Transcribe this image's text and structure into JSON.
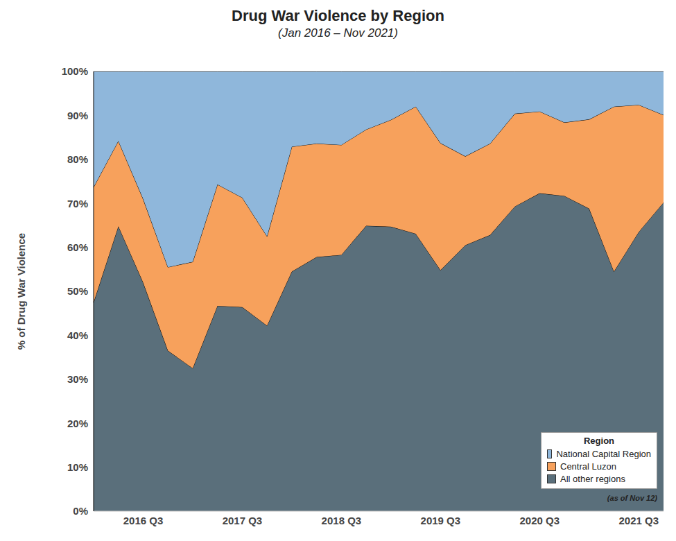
{
  "chart_data": {
    "type": "area",
    "title": "Drug War Violence by Region",
    "subtitle": "(Jan 2016 – Nov 2021)",
    "y_label": "% of Drug War Violence",
    "annotation": "(as of Nov 12)",
    "legend_title": "Region",
    "categories": [
      null,
      null,
      "2016 Q3",
      null,
      null,
      null,
      "2017 Q3",
      null,
      null,
      null,
      "2018 Q3",
      null,
      null,
      null,
      "2019 Q3",
      null,
      null,
      null,
      "2020 Q3",
      null,
      null,
      null,
      "2021 Q3",
      null
    ],
    "series": [
      {
        "name": "All other regions",
        "color": "#5a6f7b",
        "values": [
          47.5,
          64.8,
          52,
          36.5,
          32.5,
          46.7,
          46.4,
          42.2,
          54.5,
          57.8,
          58.3,
          64.9,
          64.7,
          63.1,
          54.8,
          60.5,
          62.8,
          69.3,
          72.3,
          71.7,
          68.8,
          54.5,
          63.5,
          70.2
        ]
      },
      {
        "name": "Central Luzon",
        "color": "#f7a15c",
        "values": [
          26.2,
          19.4,
          19,
          19,
          24.2,
          27.6,
          24.9,
          20.3,
          28.4,
          25.8,
          25,
          21.9,
          24.3,
          28.9,
          28.9,
          20.2,
          20.8,
          21.1,
          18.6,
          16.7,
          20.3,
          37.5,
          28.9,
          19.9
        ]
      },
      {
        "name": "National Capital Region",
        "color": "#8fb7db",
        "values": [
          26.3,
          15.8,
          29,
          44.5,
          43.3,
          25.7,
          28.7,
          37.5,
          17.1,
          16.4,
          16.7,
          13.2,
          11,
          8,
          16.3,
          19.3,
          16.4,
          9.6,
          9.1,
          11.6,
          10.9,
          8,
          7.6,
          9.9
        ]
      }
    ],
    "ylim": [
      0,
      100
    ],
    "yticks": [
      {
        "value": 0,
        "label": "0%"
      },
      {
        "value": 10,
        "label": "10%"
      },
      {
        "value": 20,
        "label": "20%"
      },
      {
        "value": 30,
        "label": "30%"
      },
      {
        "value": 40,
        "label": "40%"
      },
      {
        "value": 50,
        "label": "50%"
      },
      {
        "value": 60,
        "label": "60%"
      },
      {
        "value": 70,
        "label": "70%"
      },
      {
        "value": 80,
        "label": "80%"
      },
      {
        "value": 90,
        "label": "90%"
      },
      {
        "value": 100,
        "label": "100%"
      }
    ],
    "stacked": true,
    "grid": true,
    "legend": "lower right"
  }
}
